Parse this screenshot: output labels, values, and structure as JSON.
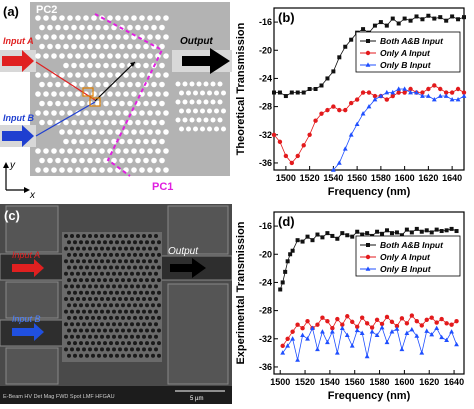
{
  "panel_a": {
    "label": "(a)",
    "pc2": "PC2",
    "pc1": "PC1",
    "input_a": "Input A",
    "input_b": "Input B",
    "output": "Output",
    "axis_y": "y",
    "axis_x": "x",
    "colors": {
      "device": "#b3b3b3",
      "hole": "#ffffff",
      "arrow_a": "#e02020",
      "arrow_b": "#1f3fd0",
      "boundary": "#e020e0"
    }
  },
  "panel_c": {
    "label": "(c)",
    "input_a": "Input A",
    "input_b": "Input B",
    "output": "Output",
    "scale": "5 µm",
    "footer_text": "E-Beam  HV   Det  Mag  FWD  Spot  LMF HFGAU"
  },
  "chart_data": [
    {
      "type": "scatter",
      "panel_label": "(b)",
      "xlabel": "Frequency (nm)",
      "ylabel": "Theoretical Transmission",
      "xlim": [
        1490,
        1650
      ],
      "ylim": [
        -37,
        -14
      ],
      "xticks": [
        1500,
        1520,
        1540,
        1560,
        1580,
        1600,
        1620,
        1640
      ],
      "yticks": [
        -16,
        -20,
        -24,
        -28,
        -32,
        -36
      ],
      "legend_position": "top-right",
      "series": [
        {
          "name": "Both A&B Input",
          "color": "#111111",
          "marker": "square",
          "x": [
            1490,
            1495,
            1500,
            1505,
            1510,
            1515,
            1520,
            1525,
            1530,
            1535,
            1540,
            1545,
            1550,
            1555,
            1560,
            1565,
            1570,
            1575,
            1580,
            1585,
            1590,
            1595,
            1600,
            1605,
            1610,
            1615,
            1620,
            1625,
            1630,
            1635,
            1640,
            1645,
            1650
          ],
          "y": [
            -26,
            -26,
            -26.5,
            -26,
            -26,
            -26,
            -25.5,
            -25.5,
            -25,
            -24,
            -23,
            -21,
            -19.5,
            -18.5,
            -17.5,
            -17,
            -17.5,
            -16.5,
            -16,
            -16.5,
            -15.5,
            -16.2,
            -15.5,
            -15.8,
            -15.2,
            -15.6,
            -15.1,
            -15.5,
            -15.3,
            -15.8,
            -15.2,
            -15.6,
            -15.3
          ]
        },
        {
          "name": "Only A Input",
          "color": "#e31a1c",
          "marker": "circle",
          "x": [
            1490,
            1495,
            1500,
            1505,
            1510,
            1515,
            1520,
            1525,
            1530,
            1535,
            1540,
            1545,
            1550,
            1555,
            1560,
            1565,
            1570,
            1575,
            1580,
            1585,
            1590,
            1595,
            1600,
            1605,
            1610,
            1615,
            1620,
            1625,
            1630,
            1635,
            1640,
            1645,
            1650
          ],
          "y": [
            -32,
            -33,
            -35,
            -36,
            -35,
            -33.5,
            -32,
            -30,
            -29,
            -28.5,
            -28,
            -28.5,
            -28.5,
            -27.5,
            -27,
            -26,
            -26,
            -26.5,
            -26.5,
            -27,
            -26.5,
            -26,
            -26,
            -25.5,
            -26,
            -26,
            -25.5,
            -25,
            -25.5,
            -26,
            -26,
            -25.5,
            -26
          ]
        },
        {
          "name": "Only B Input",
          "color": "#1f4fff",
          "marker": "triangle",
          "x": [
            1540,
            1545,
            1550,
            1555,
            1560,
            1565,
            1570,
            1575,
            1580,
            1585,
            1590,
            1595,
            1600,
            1605,
            1610,
            1615,
            1620,
            1625,
            1630,
            1635,
            1640,
            1645,
            1650
          ],
          "y": [
            -37,
            -36,
            -34,
            -32,
            -30.5,
            -29,
            -28,
            -27,
            -26.5,
            -26,
            -26,
            -25.5,
            -25.5,
            -26,
            -26,
            -26.5,
            -26.5,
            -27,
            -26.5,
            -26.5,
            -27,
            -27,
            -26.5
          ]
        }
      ]
    },
    {
      "type": "scatter",
      "panel_label": "(d)",
      "xlabel": "Frequency (nm)",
      "ylabel": "Experimental Transmission",
      "xlim": [
        1495,
        1648
      ],
      "ylim": [
        -37,
        -14
      ],
      "xticks": [
        1500,
        1520,
        1540,
        1560,
        1580,
        1600,
        1620,
        1640
      ],
      "yticks": [
        -16,
        -20,
        -24,
        -28,
        -32,
        -36
      ],
      "legend_position": "top-right",
      "series": [
        {
          "name": "Both A&B Input",
          "color": "#111111",
          "marker": "square",
          "x": [
            1500,
            1502,
            1504,
            1506,
            1508,
            1510,
            1514,
            1518,
            1522,
            1526,
            1530,
            1534,
            1538,
            1542,
            1546,
            1550,
            1554,
            1558,
            1562,
            1566,
            1570,
            1574,
            1578,
            1582,
            1586,
            1590,
            1594,
            1598,
            1602,
            1606,
            1610,
            1614,
            1618,
            1622,
            1626,
            1630,
            1634,
            1638,
            1642
          ],
          "y": [
            -25,
            -24,
            -22.5,
            -21,
            -20,
            -19.5,
            -18,
            -18.2,
            -17.5,
            -18,
            -17.2,
            -17.6,
            -17,
            -17.4,
            -17.8,
            -17,
            -17.3,
            -17.5,
            -16.8,
            -17.2,
            -17,
            -17.4,
            -16.8,
            -17.1,
            -16.6,
            -17,
            -16.9,
            -17.3,
            -16.5,
            -16.9,
            -16.4,
            -16.8,
            -16.6,
            -16.9,
            -16.5,
            -16.7,
            -16.6,
            -16.4,
            -16.7
          ]
        },
        {
          "name": "Only A Input",
          "color": "#e31a1c",
          "marker": "circle",
          "x": [
            1502,
            1506,
            1510,
            1514,
            1518,
            1522,
            1526,
            1530,
            1534,
            1538,
            1542,
            1546,
            1550,
            1554,
            1558,
            1562,
            1566,
            1570,
            1574,
            1578,
            1582,
            1586,
            1590,
            1594,
            1598,
            1602,
            1606,
            1610,
            1614,
            1618,
            1622,
            1626,
            1630,
            1634,
            1638,
            1642
          ],
          "y": [
            -33,
            -32,
            -31,
            -30,
            -30.5,
            -29.5,
            -30.5,
            -30,
            -29,
            -29.5,
            -30.5,
            -29.2,
            -30,
            -28.8,
            -29.6,
            -30.3,
            -29,
            -29.8,
            -30.4,
            -29.3,
            -29.9,
            -28.9,
            -29.6,
            -30.2,
            -29.1,
            -29.8,
            -28.7,
            -29.5,
            -30.1,
            -29.3,
            -29,
            -29.7,
            -29.2,
            -29.8,
            -30,
            -29.5
          ]
        },
        {
          "name": "Only B Input",
          "color": "#1f4fff",
          "marker": "triangle",
          "x": [
            1502,
            1506,
            1510,
            1514,
            1518,
            1522,
            1526,
            1530,
            1534,
            1538,
            1542,
            1546,
            1550,
            1554,
            1558,
            1562,
            1566,
            1570,
            1574,
            1578,
            1582,
            1586,
            1590,
            1594,
            1598,
            1602,
            1606,
            1610,
            1614,
            1618,
            1622,
            1626,
            1630,
            1634,
            1638,
            1642
          ],
          "y": [
            -34,
            -33,
            -32,
            -35,
            -31.5,
            -32,
            -30.5,
            -33.5,
            -31,
            -32.5,
            -31,
            -34,
            -30.5,
            -31.5,
            -33,
            -30.8,
            -31.2,
            -34.5,
            -31,
            -31.5,
            -30.4,
            -32.5,
            -31,
            -30.6,
            -33.5,
            -31.2,
            -30.7,
            -31.6,
            -34,
            -30.9,
            -31.4,
            -30.5,
            -31.8,
            -32.2,
            -31,
            -32.8
          ]
        }
      ]
    }
  ]
}
